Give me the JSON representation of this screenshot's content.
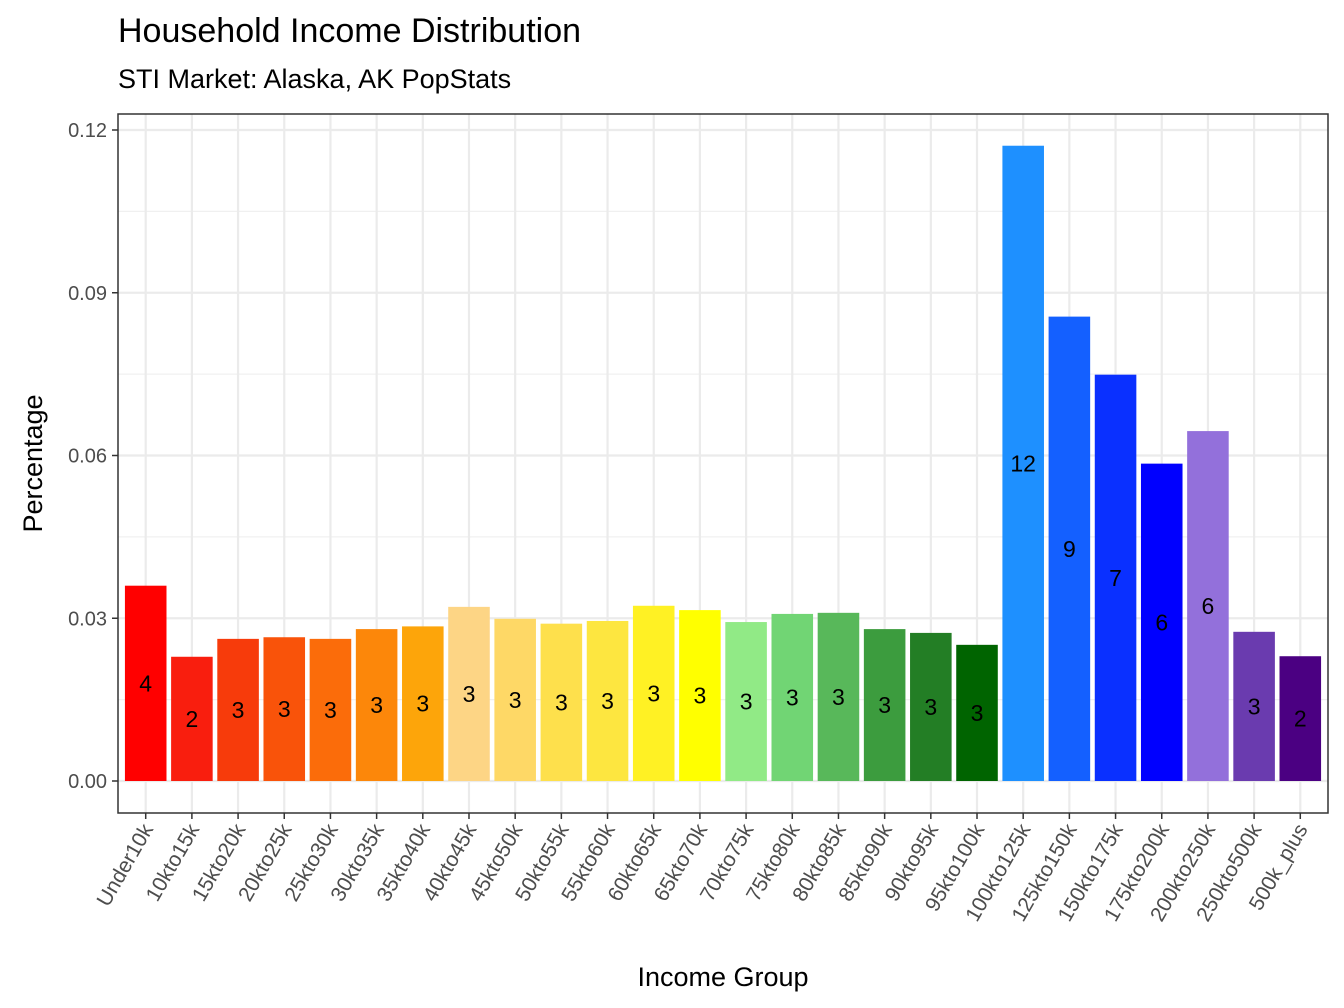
{
  "chart_data": {
    "type": "bar",
    "title": "Household Income Distribution",
    "subtitle": "STI Market: Alaska, AK PopStats",
    "xlabel": "Income Group",
    "ylabel": "Percentage",
    "ylim": [
      0,
      0.12
    ],
    "yticks": [
      "0.00",
      "0.03",
      "0.06",
      "0.09",
      "0.12"
    ],
    "grid": true,
    "categories": [
      "Under10k",
      "10kto15k",
      "15kto20k",
      "20kto25k",
      "25kto30k",
      "30kto35k",
      "35kto40k",
      "40kto45k",
      "45kto50k",
      "50kto55k",
      "55kto60k",
      "60kto65k",
      "65kto70k",
      "70kto75k",
      "75kto80k",
      "80kto85k",
      "85kto90k",
      "90kto95k",
      "95kto100k",
      "100kto125k",
      "125kto150k",
      "150kto175k",
      "175kto200k",
      "200kto250k",
      "250kto500k",
      "500k_plus"
    ],
    "values": [
      0.036,
      0.0229,
      0.0262,
      0.0265,
      0.0262,
      0.028,
      0.0285,
      0.0321,
      0.0299,
      0.029,
      0.0295,
      0.0323,
      0.0315,
      0.0293,
      0.0308,
      0.031,
      0.028,
      0.0273,
      0.0251,
      0.1171,
      0.0856,
      0.0749,
      0.0585,
      0.0645,
      0.0275,
      0.023
    ],
    "labels": [
      "4",
      "2",
      "3",
      "3",
      "3",
      "3",
      "3",
      "3",
      "3",
      "3",
      "3",
      "3",
      "3",
      "3",
      "3",
      "3",
      "3",
      "3",
      "3",
      "12",
      "9",
      "7",
      "6",
      "6",
      "3",
      "2"
    ],
    "colors": [
      "#FF0000",
      "#F91E0E",
      "#F73B0B",
      "#F9530A",
      "#FB6C0A",
      "#FC870A",
      "#FDA50A",
      "#FDD585",
      "#FED866",
      "#FEE04C",
      "#FDE640",
      "#FFF124",
      "#FFFF00",
      "#91EA86",
      "#71D574",
      "#58B85A",
      "#3C9C3E",
      "#237E25",
      "#006400",
      "#1E90FF",
      "#1460FF",
      "#0A30FF",
      "#0000FF",
      "#9370DB",
      "#6A3BAF",
      "#4B0082"
    ]
  }
}
